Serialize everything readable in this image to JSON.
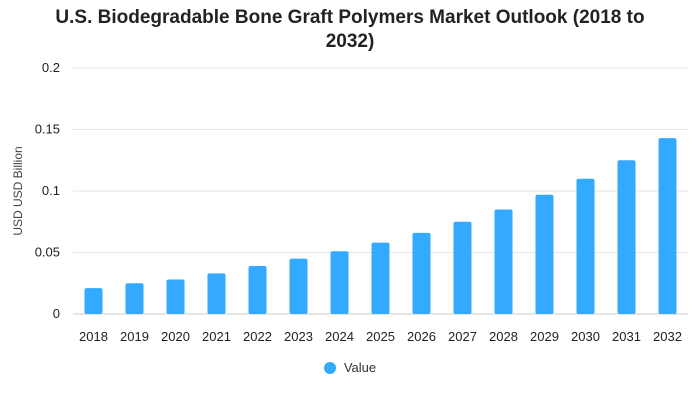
{
  "chart_data": {
    "type": "bar",
    "title_lines": [
      "U.S. Biodegradable Bone Graft Polymers Market Outlook (2018 to",
      "2032)"
    ],
    "xlabel": "",
    "ylabel": "USD USD Billion",
    "categories": [
      "2018",
      "2019",
      "2020",
      "2021",
      "2022",
      "2023",
      "2024",
      "2025",
      "2026",
      "2027",
      "2028",
      "2029",
      "2030",
      "2031",
      "2032"
    ],
    "series": [
      {
        "name": "Value",
        "color": "#33aaff",
        "values": [
          0.021,
          0.025,
          0.028,
          0.033,
          0.039,
          0.045,
          0.051,
          0.058,
          0.066,
          0.075,
          0.085,
          0.097,
          0.11,
          0.125,
          0.143
        ]
      }
    ],
    "ylim": [
      0,
      0.2
    ],
    "yticks": [
      "0",
      "0.05",
      "0.1",
      "0.15",
      "0.2"
    ],
    "ytick_values": [
      0,
      0.05,
      0.1,
      0.15,
      0.2
    ],
    "grid": true,
    "legend_position": "bottom-center"
  }
}
